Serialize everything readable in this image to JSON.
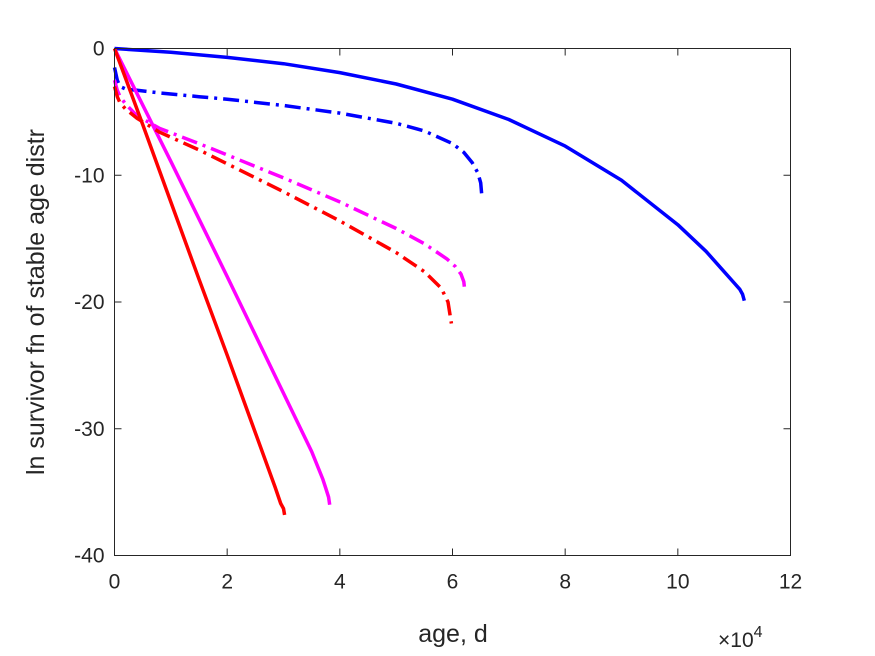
{
  "chart_data": {
    "type": "line",
    "xlabel": "age, d",
    "ylabel": "ln survivor fn of stable age distr",
    "x_exponent": "×10",
    "x_exponent_power": "4",
    "xlim": [
      0,
      12
    ],
    "ylim": [
      -40,
      0
    ],
    "xticks": [
      "0",
      "2",
      "4",
      "6",
      "8",
      "10",
      "12"
    ],
    "yticks": [
      "0",
      "-10",
      "-20",
      "-30",
      "-40"
    ],
    "xtick_values": [
      0,
      2,
      4,
      6,
      8,
      10,
      12
    ],
    "ytick_values": [
      0,
      -10,
      -20,
      -30,
      -40
    ],
    "grid": false,
    "series": [
      {
        "color": "#0000ff",
        "style": "solid",
        "x": [
          0,
          1,
          2,
          3,
          4,
          5,
          6,
          7,
          8,
          9,
          10,
          10.5,
          10.8,
          11.0,
          11.1,
          11.15,
          11.18
        ],
        "y": [
          0,
          -0.3,
          -0.7,
          -1.2,
          -1.9,
          -2.8,
          -4.0,
          -5.6,
          -7.7,
          -10.4,
          -13.9,
          -16.0,
          -17.5,
          -18.5,
          -19.0,
          -19.4,
          -19.9
        ]
      },
      {
        "color": "#0000ff",
        "style": "dashdot",
        "x": [
          0,
          0.05,
          0.1,
          0.2,
          0.4,
          0.8,
          1.5,
          2,
          3,
          4,
          5,
          5.5,
          6.0,
          6.2,
          6.35,
          6.45,
          6.5,
          6.52
        ],
        "y": [
          -1.5,
          -2.5,
          -3.0,
          -3.2,
          -3.3,
          -3.5,
          -3.8,
          -4.0,
          -4.5,
          -5.1,
          -5.9,
          -6.5,
          -7.5,
          -8.2,
          -9.0,
          -9.8,
          -10.6,
          -11.6
        ]
      },
      {
        "color": "#ff00ff",
        "style": "solid",
        "x": [
          0,
          1,
          2,
          3,
          3.5,
          3.7,
          3.75,
          3.8,
          3.82
        ],
        "y": [
          0,
          -8.9,
          -18.0,
          -27.2,
          -31.8,
          -34.0,
          -34.7,
          -35.4,
          -36.0
        ]
      },
      {
        "color": "#ff00ff",
        "style": "dashdot",
        "x": [
          0,
          0.05,
          0.1,
          0.2,
          0.4,
          0.8,
          1.5,
          2,
          3,
          4,
          5,
          5.5,
          5.9,
          6.05,
          6.15,
          6.2,
          6.22
        ],
        "y": [
          -2.5,
          -3.3,
          -3.8,
          -4.4,
          -5.3,
          -6.3,
          -7.5,
          -8.4,
          -10.2,
          -12.1,
          -14.2,
          -15.4,
          -16.6,
          -17.2,
          -17.8,
          -18.4,
          -19.2
        ]
      },
      {
        "color": "#ff0000",
        "style": "solid",
        "x": [
          0,
          0.5,
          1,
          1.5,
          2,
          2.5,
          2.85,
          2.95,
          3.0,
          3.02
        ],
        "y": [
          0,
          -6.0,
          -12.1,
          -18.2,
          -24.2,
          -30.3,
          -34.6,
          -35.9,
          -36.3,
          -36.8
        ]
      },
      {
        "color": "#ff0000",
        "style": "dashdot",
        "x": [
          0,
          0.05,
          0.1,
          0.2,
          0.4,
          0.8,
          1.5,
          2,
          3,
          4,
          5,
          5.5,
          5.8,
          5.92,
          5.98
        ],
        "y": [
          -3.0,
          -3.8,
          -4.3,
          -4.8,
          -5.5,
          -6.6,
          -8.0,
          -9.1,
          -11.3,
          -13.6,
          -16.1,
          -17.6,
          -18.9,
          -20.0,
          -21.7
        ]
      }
    ]
  }
}
